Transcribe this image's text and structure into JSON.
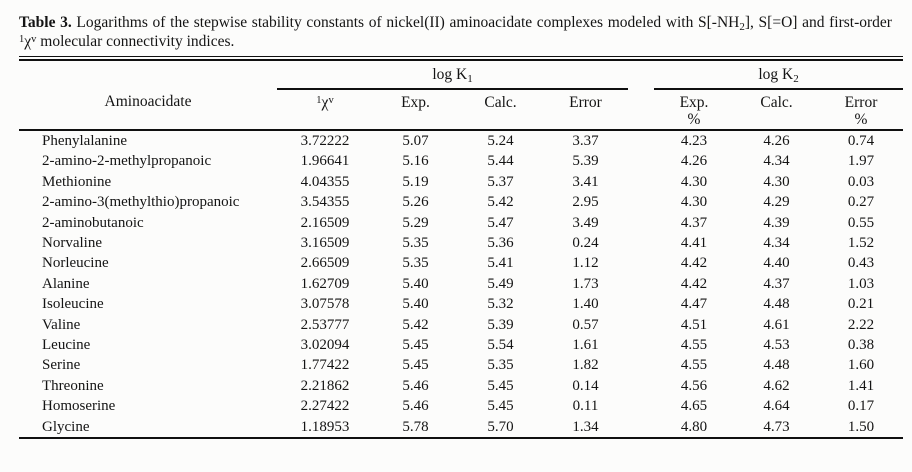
{
  "page": {
    "background": "#fcfcfb",
    "text_color": "#141414",
    "rule_color": "#101010"
  },
  "title": {
    "bold": "Table 3.",
    "seg1": " Logarithms of the stepwise stability constants of nickel(II) aminoacidate complexes modeled with S[-NH",
    "sub2": "2",
    "seg2": "], S[=O] and first-order ",
    "sup1": "1",
    "chi": "χ",
    "supv": "v",
    "seg3": " molecular connectivity indices."
  },
  "table": {
    "col_aminoacidate": "Aminoacidate",
    "group1": {
      "base": "log K",
      "sub": "1"
    },
    "group2": {
      "base": "log K",
      "sub": "2"
    },
    "chi_header": {
      "sup1": "1",
      "base": "χ",
      "supv": "v"
    },
    "k1": {
      "exp": "Exp.",
      "calc": "Calc.",
      "err": "Error"
    },
    "k2": {
      "exp1": "Exp.",
      "exp2": "%",
      "calc": "Calc.",
      "err1": "Error",
      "err2": "%"
    },
    "rows": [
      {
        "name": "Phenylalanine",
        "chi": "3.72222",
        "e1": "5.07",
        "c1": "5.24",
        "r1": "3.37",
        "e2": "4.23",
        "c2": "4.26",
        "r2": "0.74"
      },
      {
        "name": "2-amino-2-methylpropanoic",
        "chi": "1.96641",
        "e1": "5.16",
        "c1": "5.44",
        "r1": "5.39",
        "e2": "4.26",
        "c2": "4.34",
        "r2": "1.97"
      },
      {
        "name": "Methionine",
        "chi": "4.04355",
        "e1": "5.19",
        "c1": "5.37",
        "r1": "3.41",
        "e2": "4.30",
        "c2": "4.30",
        "r2": "0.03"
      },
      {
        "name": "2-amino-3(methylthio)propanoic",
        "chi": "3.54355",
        "e1": "5.26",
        "c1": "5.42",
        "r1": "2.95",
        "e2": "4.30",
        "c2": "4.29",
        "r2": "0.27"
      },
      {
        "name": "2-aminobutanoic",
        "chi": "2.16509",
        "e1": "5.29",
        "c1": "5.47",
        "r1": "3.49",
        "e2": "4.37",
        "c2": "4.39",
        "r2": "0.55"
      },
      {
        "name": "Norvaline",
        "chi": "3.16509",
        "e1": "5.35",
        "c1": "5.36",
        "r1": "0.24",
        "e2": "4.41",
        "c2": "4.34",
        "r2": "1.52"
      },
      {
        "name": "Norleucine",
        "chi": "2.66509",
        "e1": "5.35",
        "c1": "5.41",
        "r1": "1.12",
        "e2": "4.42",
        "c2": "4.40",
        "r2": "0.43"
      },
      {
        "name": "Alanine",
        "chi": "1.62709",
        "e1": "5.40",
        "c1": "5.49",
        "r1": "1.73",
        "e2": "4.42",
        "c2": "4.37",
        "r2": "1.03"
      },
      {
        "name": "Isoleucine",
        "chi": "3.07578",
        "e1": "5.40",
        "c1": "5.32",
        "r1": "1.40",
        "e2": "4.47",
        "c2": "4.48",
        "r2": "0.21"
      },
      {
        "name": "Valine",
        "chi": "2.53777",
        "e1": "5.42",
        "c1": "5.39",
        "r1": "0.57",
        "e2": "4.51",
        "c2": "4.61",
        "r2": "2.22"
      },
      {
        "name": "Leucine",
        "chi": "3.02094",
        "e1": "5.45",
        "c1": "5.54",
        "r1": "1.61",
        "e2": "4.55",
        "c2": "4.53",
        "r2": "0.38"
      },
      {
        "name": "Serine",
        "chi": "1.77422",
        "e1": "5.45",
        "c1": "5.35",
        "r1": "1.82",
        "e2": "4.55",
        "c2": "4.48",
        "r2": "1.60"
      },
      {
        "name": "Threonine",
        "chi": "2.21862",
        "e1": "5.46",
        "c1": "5.45",
        "r1": "0.14",
        "e2": "4.56",
        "c2": "4.62",
        "r2": "1.41"
      },
      {
        "name": "Homoserine",
        "chi": "2.27422",
        "e1": "5.46",
        "c1": "5.45",
        "r1": "0.11",
        "e2": "4.65",
        "c2": "4.64",
        "r2": "0.17"
      },
      {
        "name": "Glycine",
        "chi": "1.18953",
        "e1": "5.78",
        "c1": "5.70",
        "r1": "1.34",
        "e2": "4.80",
        "c2": "4.73",
        "r2": "1.50"
      }
    ]
  }
}
